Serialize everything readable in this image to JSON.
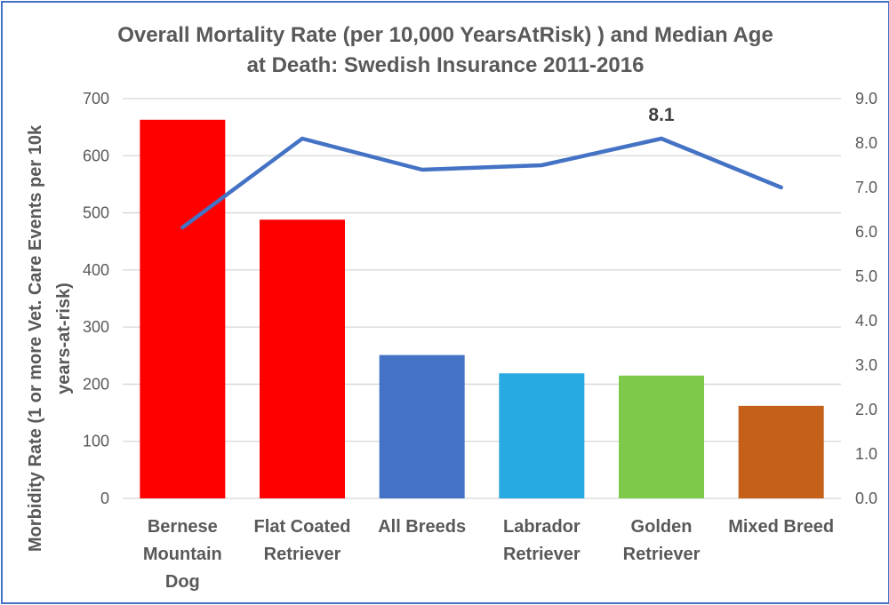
{
  "title": {
    "text": "Overall Mortality Rate (per 10,000 YearsAtRisk) ) and Median Age at Death: Swedish Insurance 2011-2016",
    "lines": [
      "Overall Mortality Rate (per 10,000 YearsAtRisk) ) and Median Age",
      "at Death: Swedish Insurance 2011-2016"
    ]
  },
  "chart_data": {
    "type": "bar",
    "subtype": "combo-bar-and-line-dual-axis",
    "title": "Overall Mortality Rate (per 10,000 YearsAtRisk) ) and Median Age at Death: Swedish Insurance 2011-2016",
    "categories": [
      "Bernese Mountain Dog",
      "Flat Coated Retriever",
      "All Breeds",
      "Labrador Retriever",
      "Golden Retriever",
      "Mixed Breed"
    ],
    "category_label_lines": [
      [
        "Bernese",
        "Mountain",
        "Dog"
      ],
      [
        "Flat Coated",
        "Retriever"
      ],
      [
        "All Breeds"
      ],
      [
        "Labrador",
        "Retriever"
      ],
      [
        "Golden",
        "Retriever"
      ],
      [
        "Mixed Breed"
      ]
    ],
    "series": [
      {
        "name": "Morbidity Rate (1 or more Vet. Care Events per 10k years-at-risk)",
        "type": "bar",
        "axis": "left",
        "values": [
          663,
          488,
          251,
          219,
          215,
          162
        ],
        "bar_colors": [
          "#FF0000",
          "#FF0000",
          "#4472C4",
          "#27A9E1",
          "#7DC94A",
          "#C4601A"
        ]
      },
      {
        "name": "Median Age at Death",
        "type": "line",
        "axis": "right",
        "values": [
          6.1,
          8.1,
          7.4,
          7.5,
          8.1,
          7.0
        ],
        "color": "#4472C4",
        "data_labels": [
          null,
          null,
          null,
          null,
          "8.1",
          null
        ]
      }
    ],
    "left_axis": {
      "title": "Morbidity Rate (1 or more Vet. Care Events per 10k years-at-risk)",
      "title_lines": [
        "Morbidity Rate (1 or more Vet. Care Events per 10k",
        "years-at-risk)"
      ],
      "min": 0,
      "max": 700,
      "ticks": [
        "0",
        "100",
        "200",
        "300",
        "400",
        "500",
        "600",
        "700"
      ]
    },
    "right_axis": {
      "title": "",
      "min": 0,
      "max": 9,
      "ticks": [
        "0.0",
        "1.0",
        "2.0",
        "3.0",
        "4.0",
        "5.0",
        "6.0",
        "7.0",
        "8.0",
        "9.0"
      ]
    },
    "grid": true,
    "legend": "none",
    "colors": {
      "gridline": "#D6D6D6",
      "text": "#595959",
      "data_label": "#404040",
      "border": "#4472C4",
      "background": "#FFFFFF"
    }
  }
}
